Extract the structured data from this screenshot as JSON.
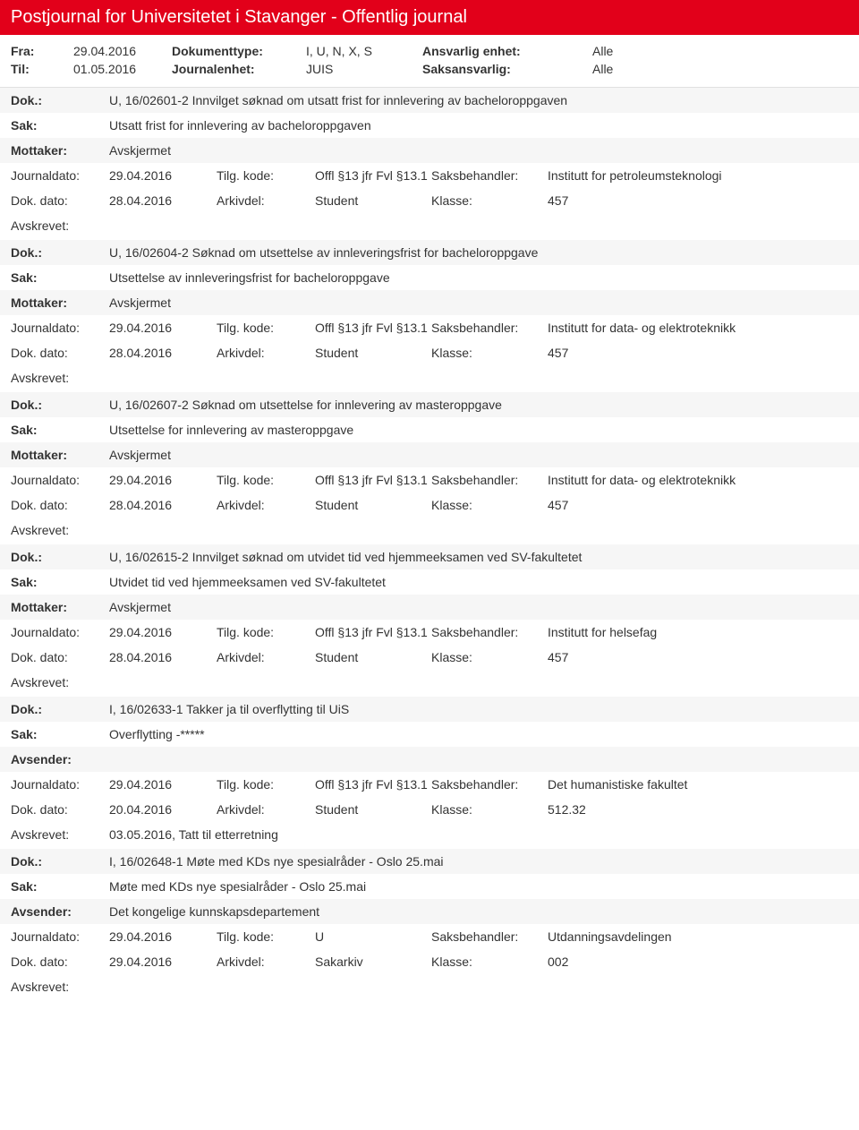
{
  "page_title": "Postjournal for Universitetet i Stavanger - Offentlig journal",
  "meta": {
    "fra_label": "Fra:",
    "fra_value": "29.04.2016",
    "til_label": "Til:",
    "til_value": "01.05.2016",
    "dokumenttype_label": "Dokumenttype:",
    "dokumenttype_value": "I, U, N, X, S",
    "journalenhet_label": "Journalenhet:",
    "journalenhet_value": "JUIS",
    "ansvarlig_label": "Ansvarlig enhet:",
    "ansvarlig_value": "Alle",
    "saksansvarlig_label": "Saksansvarlig:",
    "saksansvarlig_value": "Alle"
  },
  "labels": {
    "dok": "Dok.:",
    "sak": "Sak:",
    "mottaker": "Mottaker:",
    "avsender": "Avsender:",
    "journaldato": "Journaldato:",
    "tilg_kode": "Tilg. kode:",
    "saksbehandler": "Saksbehandler:",
    "dok_dato": "Dok. dato:",
    "arkivdel": "Arkivdel:",
    "klasse": "Klasse:",
    "avskrevet": "Avskrevet:"
  },
  "entries": [
    {
      "dok": "U, 16/02601-2 Innvilget søknad om utsatt frist for innlevering av bacheloroppgaven",
      "sak": "Utsatt frist for innlevering av bacheloroppgaven",
      "party_label": "mottaker",
      "party": "Avskjermet",
      "journaldato": "29.04.2016",
      "tilg_kode": "Offl §13 jfr Fvl §13.1",
      "saksbehandler": "Institutt for petroleumsteknologi",
      "dok_dato": "28.04.2016",
      "arkivdel": "Student",
      "klasse": "457",
      "avskrevet": ""
    },
    {
      "dok": "U, 16/02604-2 Søknad om utsettelse av innleveringsfrist for bacheloroppgave",
      "sak": "Utsettelse av innleveringsfrist for bacheloroppgave",
      "party_label": "mottaker",
      "party": "Avskjermet",
      "journaldato": "29.04.2016",
      "tilg_kode": "Offl §13 jfr Fvl §13.1",
      "saksbehandler": "Institutt for data- og elektroteknikk",
      "dok_dato": "28.04.2016",
      "arkivdel": "Student",
      "klasse": "457",
      "avskrevet": ""
    },
    {
      "dok": "U, 16/02607-2 Søknad om utsettelse for innlevering av masteroppgave",
      "sak": "Utsettelse for innlevering av masteroppgave",
      "party_label": "mottaker",
      "party": "Avskjermet",
      "journaldato": "29.04.2016",
      "tilg_kode": "Offl §13 jfr Fvl §13.1",
      "saksbehandler": "Institutt for data- og elektroteknikk",
      "dok_dato": "28.04.2016",
      "arkivdel": "Student",
      "klasse": "457",
      "avskrevet": ""
    },
    {
      "dok": "U, 16/02615-2 Innvilget søknad om utvidet tid ved hjemmeeksamen ved SV-fakultetet",
      "sak": "Utvidet tid ved hjemmeeksamen ved SV-fakultetet",
      "party_label": "mottaker",
      "party": "Avskjermet",
      "journaldato": "29.04.2016",
      "tilg_kode": "Offl §13 jfr Fvl §13.1",
      "saksbehandler": "Institutt for helsefag",
      "dok_dato": "28.04.2016",
      "arkivdel": "Student",
      "klasse": "457",
      "avskrevet": ""
    },
    {
      "dok": "I, 16/02633-1 Takker ja til overflytting til UiS",
      "sak": "Overflytting -*****",
      "party_label": "avsender",
      "party": "",
      "journaldato": "29.04.2016",
      "tilg_kode": "Offl §13 jfr Fvl §13.1",
      "saksbehandler": "Det humanistiske fakultet",
      "dok_dato": "20.04.2016",
      "arkivdel": "Student",
      "klasse": "512.32",
      "avskrevet": "03.05.2016, Tatt til etterretning"
    },
    {
      "dok": "I, 16/02648-1 Møte med KDs nye spesialråder - Oslo 25.mai",
      "sak": "Møte med KDs nye spesialråder - Oslo 25.mai",
      "party_label": "avsender",
      "party": "Det kongelige kunnskapsdepartement",
      "journaldato": "29.04.2016",
      "tilg_kode": "U",
      "saksbehandler": "Utdanningsavdelingen",
      "dok_dato": "29.04.2016",
      "arkivdel": "Sakarkiv",
      "klasse": "002",
      "avskrevet": ""
    }
  ]
}
